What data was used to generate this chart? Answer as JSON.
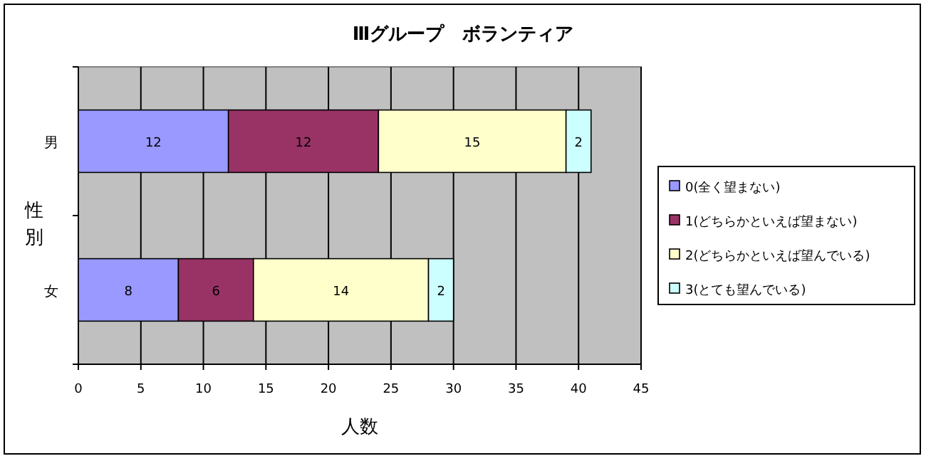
{
  "chart_data": {
    "type": "bar",
    "orientation": "horizontal",
    "stacked": true,
    "title": "Ⅲグループ　ボランティア",
    "xlabel": "人数",
    "ylabel": "性別",
    "categories": [
      "男",
      "女"
    ],
    "series": [
      {
        "name": "0(全く望まない)",
        "color": "#9999ff",
        "values": [
          12,
          8
        ]
      },
      {
        "name": "1(どちらかといえば望まない)",
        "color": "#993366",
        "values": [
          12,
          6
        ]
      },
      {
        "name": "2(どちらかといえば望んでいる)",
        "color": "#ffffcc",
        "values": [
          15,
          14
        ]
      },
      {
        "name": "3(とても望んでいる)",
        "color": "#ccffff",
        "values": [
          2,
          2
        ]
      }
    ],
    "xlim": [
      0,
      45
    ],
    "xticks": [
      0,
      5,
      10,
      15,
      20,
      25,
      30,
      35,
      40,
      45
    ],
    "grid": "x",
    "legend": "right",
    "data_labels": true
  }
}
